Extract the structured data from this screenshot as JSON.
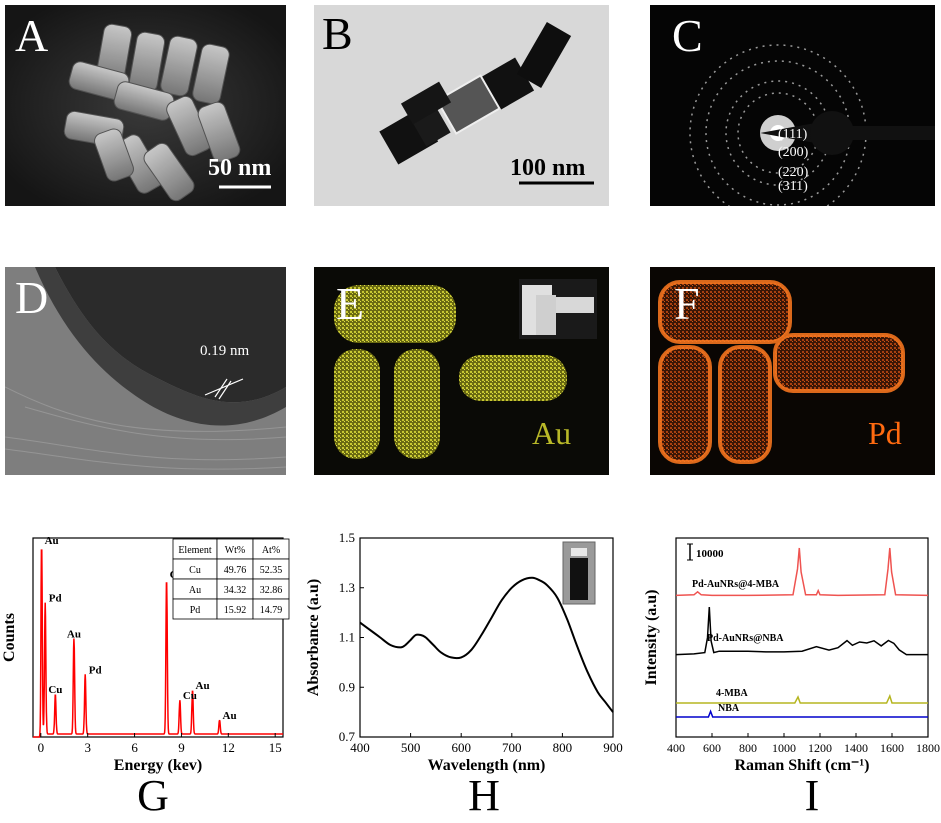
{
  "panels": {
    "A": {
      "label": "A",
      "scale_bar": "50 nm"
    },
    "B": {
      "label": "B",
      "scale_bar": "100 nm"
    },
    "C": {
      "label": "C",
      "planes": [
        "(111)",
        "(200)",
        "(220)",
        "(311)"
      ]
    },
    "D": {
      "label": "D",
      "spacing": "0.19 nm"
    },
    "E": {
      "label": "E",
      "element": "Au",
      "color": "#c8c832"
    },
    "F": {
      "label": "F",
      "element": "Pd",
      "color": "#ff6a10"
    }
  },
  "bottom_labels": {
    "G": "G",
    "H": "H",
    "I": "I"
  },
  "chart_data": [
    {
      "id": "G",
      "type": "line",
      "xlabel": "Energy (kev)",
      "ylabel": "Counts",
      "xlim": [
        -0.5,
        15.5
      ],
      "xticks": [
        "0",
        "3",
        "6",
        "9",
        "12",
        "15"
      ],
      "color": "#ff0000",
      "peaks": [
        {
          "x": 0.05,
          "y": 0.95,
          "label": "Au"
        },
        {
          "x": 0.28,
          "y": 0.66,
          "label": "Pd"
        },
        {
          "x": 0.93,
          "y": 0.2,
          "label": "Cu"
        },
        {
          "x": 2.12,
          "y": 0.48,
          "label": "Au"
        },
        {
          "x": 2.84,
          "y": 0.3,
          "label": "Pd"
        },
        {
          "x": 8.05,
          "y": 0.78,
          "label": "Cu"
        },
        {
          "x": 8.9,
          "y": 0.17,
          "label": "Cu"
        },
        {
          "x": 9.71,
          "y": 0.22,
          "label": "Au"
        },
        {
          "x": 11.44,
          "y": 0.07,
          "label": "Au"
        }
      ],
      "table": {
        "headers": [
          "Element",
          "Wt%",
          "At%"
        ],
        "rows": [
          [
            "Cu",
            "49.76",
            "52.35"
          ],
          [
            "Au",
            "34.32",
            "32.86"
          ],
          [
            "Pd",
            "15.92",
            "14.79"
          ]
        ]
      }
    },
    {
      "id": "H",
      "type": "line",
      "xlabel": "Wavelength (nm)",
      "ylabel": "Absorbance (a.u)",
      "xlim": [
        400,
        900
      ],
      "ylim": [
        0.7,
        1.5
      ],
      "xticks": [
        "400",
        "500",
        "600",
        "700",
        "800",
        "900"
      ],
      "yticks": [
        "0.7",
        "0.9",
        "1.1",
        "1.3",
        "1.5"
      ],
      "color": "#000000",
      "x": [
        400,
        420,
        440,
        460,
        480,
        490,
        500,
        510,
        520,
        530,
        545,
        560,
        580,
        600,
        620,
        640,
        660,
        680,
        700,
        720,
        740,
        755,
        770,
        790,
        810,
        830,
        850,
        870,
        885,
        900
      ],
      "y": [
        1.16,
        1.13,
        1.1,
        1.07,
        1.06,
        1.07,
        1.09,
        1.11,
        1.11,
        1.1,
        1.07,
        1.04,
        1.02,
        1.02,
        1.05,
        1.11,
        1.18,
        1.25,
        1.3,
        1.33,
        1.34,
        1.33,
        1.31,
        1.26,
        1.17,
        1.06,
        0.96,
        0.88,
        0.84,
        0.8
      ]
    },
    {
      "id": "I",
      "type": "line",
      "xlabel": "Raman Shift (cm⁻¹)",
      "ylabel": "Intensity (a.u)",
      "xlim": [
        400,
        1800
      ],
      "xticks": [
        "400",
        "600",
        "800",
        "1000",
        "1200",
        "1400",
        "1600",
        "1800"
      ],
      "scale_label": "10000",
      "series": [
        {
          "name": "Pd-AuNRs@4-MBA",
          "color": "#ef5350",
          "x": [
            400,
            500,
            520,
            540,
            600,
            800,
            1050,
            1075,
            1085,
            1095,
            1120,
            1180,
            1190,
            1200,
            1300,
            1560,
            1578,
            1588,
            1598,
            1620,
            1800
          ],
          "y": [
            0.16,
            0.17,
            0.22,
            0.17,
            0.16,
            0.16,
            0.17,
            0.6,
            0.95,
            0.55,
            0.17,
            0.17,
            0.24,
            0.17,
            0.16,
            0.17,
            0.6,
            0.95,
            0.55,
            0.17,
            0.16
          ]
        },
        {
          "name": "Pd-AuNRs@NBA",
          "color": "#000000",
          "x": [
            400,
            500,
            560,
            575,
            585,
            595,
            610,
            640,
            700,
            800,
            900,
            1000,
            1100,
            1180,
            1250,
            1300,
            1350,
            1380,
            1420,
            1460,
            1500,
            1540,
            1580,
            1610,
            1640,
            1680,
            1800
          ],
          "y": [
            0.05,
            0.06,
            0.08,
            0.3,
            0.75,
            0.25,
            0.08,
            0.1,
            0.1,
            0.1,
            0.09,
            0.09,
            0.1,
            0.15,
            0.13,
            0.15,
            0.24,
            0.2,
            0.25,
            0.2,
            0.25,
            0.2,
            0.25,
            0.22,
            0.12,
            0.05,
            0.05
          ]
        },
        {
          "name": "4-MBA",
          "color": "#b5b520",
          "x": [
            400,
            1060,
            1078,
            1090,
            1570,
            1588,
            1600,
            1800
          ],
          "y": [
            0.0,
            0.0,
            0.6,
            0.0,
            0.0,
            0.7,
            0.0,
            0.0
          ]
        },
        {
          "name": "NBA",
          "color": "#0000cc",
          "x": [
            400,
            580,
            592,
            604,
            1800
          ],
          "y": [
            0.0,
            0.0,
            0.7,
            0.0,
            0.0
          ]
        }
      ]
    }
  ]
}
